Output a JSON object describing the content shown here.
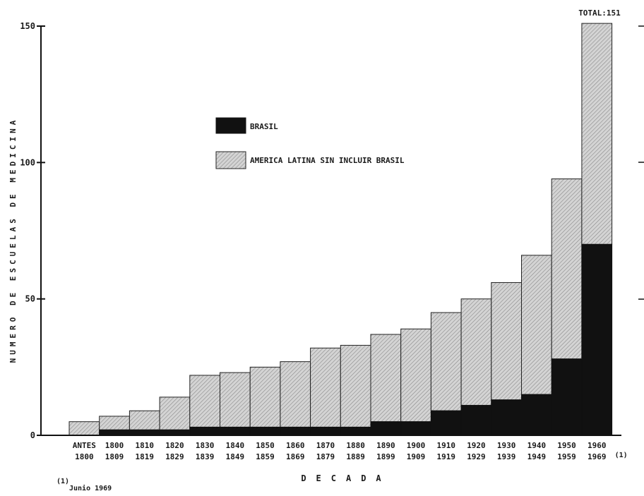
{
  "chart_data": {
    "type": "bar",
    "stacked": true,
    "categories": [
      [
        "ANTES",
        "1800"
      ],
      [
        "1800",
        "1809"
      ],
      [
        "1810",
        "1819"
      ],
      [
        "1820",
        "1829"
      ],
      [
        "1830",
        "1839"
      ],
      [
        "1840",
        "1849"
      ],
      [
        "1850",
        "1859"
      ],
      [
        "1860",
        "1869"
      ],
      [
        "1870",
        "1879"
      ],
      [
        "1880",
        "1889"
      ],
      [
        "1890",
        "1899"
      ],
      [
        "1900",
        "1909"
      ],
      [
        "1910",
        "1919"
      ],
      [
        "1920",
        "1929"
      ],
      [
        "1930",
        "1939"
      ],
      [
        "1940",
        "1949"
      ],
      [
        "1950",
        "1959"
      ],
      [
        "1960",
        "1969"
      ]
    ],
    "last_category_note": "(1)",
    "series": [
      {
        "name": "BRASIL",
        "color": "#111111",
        "pattern": "solid",
        "values": [
          0,
          2,
          2,
          2,
          3,
          3,
          3,
          3,
          3,
          3,
          5,
          5,
          9,
          11,
          13,
          15,
          28,
          70
        ]
      },
      {
        "name": "AMERICA LATINA SIN INCLUIR BRASIL",
        "color": "#cfcfcf",
        "pattern": "hatch",
        "values": [
          5,
          5,
          7,
          12,
          19,
          20,
          22,
          24,
          29,
          30,
          32,
          34,
          36,
          39,
          43,
          51,
          66,
          81
        ]
      }
    ],
    "ylim": [
      0,
      150
    ],
    "yticks": [
      0,
      50,
      100,
      150
    ],
    "ylabel": "NUMERO DE ESCUELAS DE MEDICINA",
    "xlabel": "DECADA",
    "annotation_total": "TOTAL:151",
    "footnote": {
      "marker": "(1)",
      "text": "Junio 1969"
    },
    "legend_position": "upper-left-center",
    "grid": false
  }
}
